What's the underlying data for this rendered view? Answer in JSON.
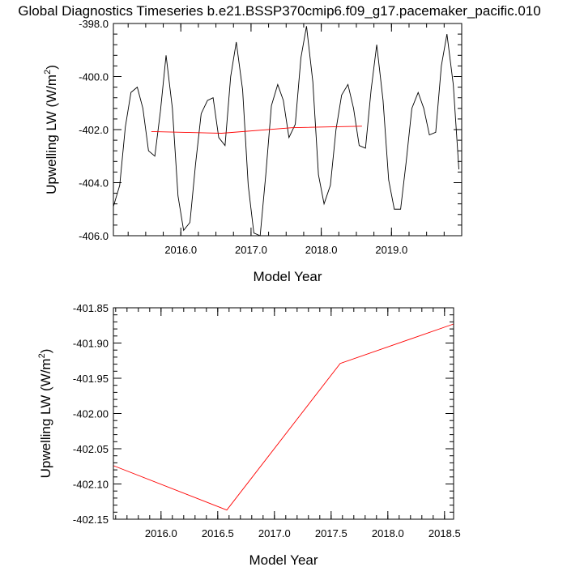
{
  "title": "Global Diagnostics Timeseries b.e21.BSSP370cmip6.f09_g17.pacemaker_pacific.010",
  "colors": {
    "monthly": "#000000",
    "annual": "#ff0000",
    "axis": "#000000"
  },
  "chart_data": [
    {
      "type": "line",
      "xlabel": "Model Year",
      "ylabel_main": "Upwelling LW (W/m",
      "ylabel_sup": "2",
      "ylabel_close": ")",
      "xlim": [
        2015.04,
        2020.0
      ],
      "ylim": [
        -406.0,
        -398.0
      ],
      "xticks": [
        2016.0,
        2017.0,
        2018.0,
        2019.0
      ],
      "xtick_labels": [
        "2016.0",
        "2017.0",
        "2018.0",
        "2019.0"
      ],
      "yticks": [
        -406.0,
        -404.0,
        -402.0,
        -400.0,
        -398.0
      ],
      "ytick_labels": [
        "-406.0",
        "-404.0",
        "-402.0",
        "-400.0",
        "-398.0"
      ],
      "grid": false,
      "series": [
        {
          "color": "#000000",
          "x": [
            2015.04,
            2015.13,
            2015.21,
            2015.29,
            2015.38,
            2015.46,
            2015.54,
            2015.63,
            2015.71,
            2015.79,
            2015.88,
            2015.96,
            2016.04,
            2016.13,
            2016.21,
            2016.29,
            2016.38,
            2016.46,
            2016.54,
            2016.63,
            2016.71,
            2016.79,
            2016.88,
            2016.96,
            2017.04,
            2017.13,
            2017.21,
            2017.29,
            2017.38,
            2017.46,
            2017.54,
            2017.63,
            2017.71,
            2017.79,
            2017.88,
            2017.96,
            2018.04,
            2018.13,
            2018.21,
            2018.29,
            2018.38,
            2018.46,
            2018.54,
            2018.63,
            2018.71,
            2018.79,
            2018.88,
            2018.96,
            2019.04,
            2019.13,
            2019.21,
            2019.29,
            2019.38,
            2019.46,
            2019.54,
            2019.63,
            2019.71,
            2019.79,
            2019.88,
            2019.96
          ],
          "y": [
            -404.9,
            -404.1,
            -401.9,
            -400.6,
            -400.4,
            -401.2,
            -402.8,
            -403.0,
            -401.3,
            -399.2,
            -401.2,
            -404.5,
            -405.8,
            -405.5,
            -403.3,
            -401.4,
            -400.9,
            -400.8,
            -402.3,
            -402.6,
            -400.0,
            -398.7,
            -400.5,
            -404.1,
            -405.9,
            -406.0,
            -403.7,
            -401.1,
            -400.3,
            -400.9,
            -402.3,
            -401.8,
            -399.3,
            -398.1,
            -400.2,
            -403.7,
            -404.8,
            -404.1,
            -402.0,
            -400.7,
            -400.3,
            -401.2,
            -402.6,
            -402.7,
            -400.5,
            -398.8,
            -400.9,
            -403.9,
            -405.0,
            -405.0,
            -403.2,
            -401.2,
            -400.6,
            -401.2,
            -402.2,
            -402.1,
            -399.6,
            -398.4,
            -400.3,
            -403.5
          ]
        },
        {
          "color": "#ff0000",
          "x": [
            2015.58,
            2016.58,
            2017.58,
            2018.58
          ],
          "y": [
            -402.074,
            -402.137,
            -401.929,
            -401.873
          ]
        }
      ]
    },
    {
      "type": "line",
      "xlabel": "Model Year",
      "ylabel_main": "Upwelling LW (W/m",
      "ylabel_sup": "2",
      "ylabel_close": ")",
      "xlim": [
        2015.58,
        2018.58
      ],
      "ylim": [
        -402.15,
        -401.85
      ],
      "xticks": [
        2016.0,
        2016.5,
        2017.0,
        2017.5,
        2018.0,
        2018.5
      ],
      "xtick_labels": [
        "2016.0",
        "2016.5",
        "2017.0",
        "2017.5",
        "2018.0",
        "2018.5"
      ],
      "yticks": [
        -402.15,
        -402.1,
        -402.05,
        -402.0,
        -401.95,
        -401.9,
        -401.85
      ],
      "ytick_labels": [
        "-402.15",
        "-402.10",
        "-402.05",
        "-402.00",
        "-401.95",
        "-401.90",
        "-401.85"
      ],
      "grid": false,
      "series": [
        {
          "color": "#ff0000",
          "x": [
            2015.58,
            2016.58,
            2017.58,
            2018.58
          ],
          "y": [
            -402.074,
            -402.137,
            -401.929,
            -401.873
          ]
        }
      ]
    }
  ]
}
